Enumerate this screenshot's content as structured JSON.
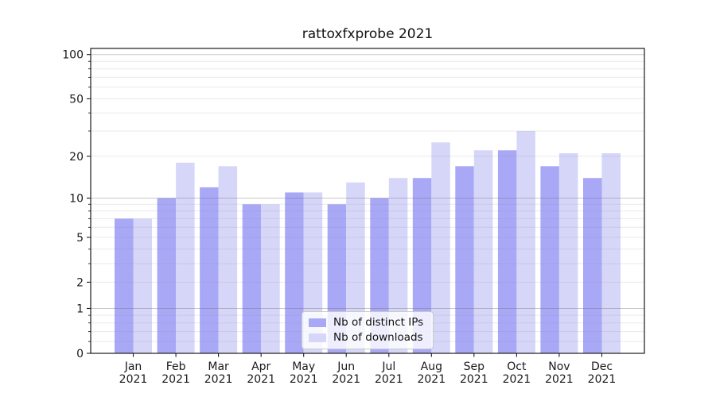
{
  "chart_data": {
    "type": "bar",
    "title": "rattoxfxprobe 2021",
    "categories": [
      "Jan",
      "Feb",
      "Mar",
      "Apr",
      "May",
      "Jun",
      "Jul",
      "Aug",
      "Sep",
      "Oct",
      "Nov",
      "Dec"
    ],
    "category_year": "2021",
    "series": [
      {
        "name": "Nb of distinct IPs",
        "color": "#a8a8f7",
        "values": [
          7,
          10,
          12,
          9,
          11,
          9,
          10,
          14,
          17,
          22,
          17,
          14
        ]
      },
      {
        "name": "Nb of downloads",
        "color": "#d6d6f9",
        "values": [
          7,
          18,
          17,
          9,
          11,
          13,
          14,
          25,
          22,
          30,
          21,
          21
        ]
      }
    ],
    "xlabel": "",
    "ylabel": "",
    "yscale": "log1p",
    "ylim": [
      0,
      110
    ],
    "y_labeled_ticks": [
      0,
      1,
      2,
      5,
      10,
      20,
      50,
      100
    ],
    "y_major_grid": [
      1,
      10,
      100
    ],
    "y_minor_grid": [
      0.2,
      0.4,
      0.6,
      0.8,
      2,
      3,
      4,
      5,
      6,
      7,
      8,
      9,
      20,
      30,
      40,
      50,
      60,
      70,
      80,
      90
    ],
    "grid": true,
    "legend_position": "lower center"
  },
  "colors": {
    "bar_dark": "#a8a8f7",
    "bar_light": "#d6d6f9",
    "axis": "#1a1a1a",
    "grid_major": "rgba(110,110,110,0.38)",
    "grid_minor": "rgba(140,140,140,0.18)",
    "legend_border": "#c9c9c9",
    "background": "#ffffff"
  }
}
